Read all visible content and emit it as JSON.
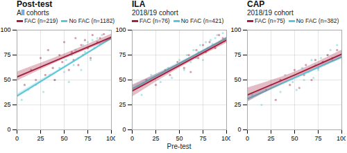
{
  "chart_data": [
    {
      "type": "scatter",
      "title": "Post-test",
      "subtitle": "All cohorts",
      "xlim": [
        0,
        100
      ],
      "ylim": [
        0,
        100
      ],
      "xticks": [
        0,
        25,
        50,
        75,
        100
      ],
      "yticks": [
        0,
        25,
        50,
        75,
        100
      ],
      "grid": true,
      "legend": "top",
      "series": [
        {
          "name": "FAC (n=219)",
          "color": "#a3213f",
          "x": [
            8,
            15,
            20,
            25,
            30,
            33,
            38,
            40,
            45,
            48,
            50,
            55,
            58,
            60,
            62,
            65,
            68,
            70,
            72,
            75,
            78,
            80,
            85,
            88,
            92
          ],
          "values": [
            45,
            60,
            50,
            72,
            55,
            80,
            62,
            50,
            75,
            68,
            88,
            60,
            78,
            70,
            92,
            65,
            85,
            75,
            90,
            82,
            72,
            95,
            88,
            92,
            96
          ],
          "fit_x": [
            0,
            50,
            100
          ],
          "fit": [
            53,
            73,
            93
          ],
          "fit_lower": [
            49,
            71,
            90
          ],
          "fit_upper": [
            58,
            76,
            96
          ]
        },
        {
          "name": "No FAC (n=1182)",
          "color": "#5cc6d8",
          "x": [
            5,
            12,
            20,
            28,
            35,
            40,
            45,
            50,
            52,
            55,
            58,
            60,
            62,
            65,
            68,
            70,
            72,
            75,
            78,
            80,
            82,
            85,
            88,
            90,
            95,
            98
          ],
          "values": [
            30,
            40,
            45,
            38,
            55,
            50,
            62,
            58,
            70,
            48,
            75,
            65,
            80,
            72,
            60,
            85,
            78,
            88,
            70,
            90,
            82,
            92,
            86,
            95,
            90,
            100
          ],
          "fit_x": [
            0,
            50,
            100
          ],
          "fit": [
            34,
            63,
            92
          ],
          "fit_lower": [
            32,
            62,
            91
          ],
          "fit_upper": [
            36,
            64,
            93
          ]
        }
      ]
    },
    {
      "type": "scatter",
      "title": "ILA",
      "subtitle": "2018/19 cohort",
      "x_label": "Pre-test",
      "xlim": [
        0,
        100
      ],
      "ylim": [
        0,
        100
      ],
      "xticks": [
        0,
        25,
        50,
        75,
        100
      ],
      "yticks": [
        0,
        25,
        50,
        75,
        100
      ],
      "grid": true,
      "legend": "top",
      "series": [
        {
          "name": "FAC (n=76)",
          "color": "#a3213f",
          "x": [
            15,
            25,
            35,
            40,
            48,
            55,
            60,
            62,
            68,
            70,
            75,
            78,
            82,
            88,
            92,
            96
          ],
          "values": [
            50,
            45,
            60,
            55,
            68,
            62,
            75,
            58,
            80,
            72,
            85,
            78,
            88,
            82,
            95,
            92
          ],
          "fit_x": [
            0,
            50,
            100
          ],
          "fit": [
            39,
            64.5,
            90
          ],
          "fit_lower": [
            33,
            62,
            87
          ],
          "fit_upper": [
            45,
            67,
            93
          ]
        },
        {
          "name": "No FAC (n=421)",
          "color": "#5cc6d8",
          "x": [
            10,
            20,
            30,
            38,
            42,
            50,
            55,
            58,
            62,
            65,
            68,
            70,
            72,
            75,
            78,
            80,
            83,
            85,
            88,
            90,
            93,
            96,
            100
          ],
          "values": [
            35,
            55,
            48,
            62,
            52,
            70,
            60,
            75,
            68,
            80,
            72,
            78,
            85,
            70,
            88,
            82,
            90,
            86,
            92,
            95,
            88,
            97,
            100
          ],
          "fit_x": [
            0,
            50,
            100
          ],
          "fit": [
            41,
            66.5,
            92
          ],
          "fit_lower": [
            38,
            65,
            91
          ],
          "fit_upper": [
            44,
            68,
            93
          ]
        }
      ]
    },
    {
      "type": "scatter",
      "title": "CAP",
      "subtitle": "2018/19 cohort",
      "xlim": [
        0,
        100
      ],
      "ylim": [
        0,
        100
      ],
      "xticks": [
        0,
        25,
        50,
        75,
        100
      ],
      "yticks": [
        0,
        25,
        50,
        75,
        100
      ],
      "grid": true,
      "legend": "top",
      "series": [
        {
          "name": "FAC (n=75)",
          "color": "#a3213f",
          "x": [
            20,
            30,
            35,
            45,
            50,
            55,
            60,
            62,
            68,
            72,
            75,
            80,
            85,
            90,
            95
          ],
          "values": [
            40,
            30,
            50,
            45,
            60,
            42,
            55,
            65,
            50,
            70,
            62,
            68,
            75,
            72,
            80
          ],
          "fit_x": [
            0,
            50,
            100
          ],
          "fit": [
            35,
            55,
            76
          ],
          "fit_lower": [
            28,
            52,
            72
          ],
          "fit_upper": [
            42,
            58,
            80
          ]
        },
        {
          "name": "No FAC (n=382)",
          "color": "#5cc6d8",
          "x": [
            5,
            15,
            25,
            35,
            40,
            48,
            52,
            58,
            60,
            65,
            68,
            70,
            72,
            75,
            78,
            80,
            85,
            88,
            90,
            95,
            100
          ],
          "values": [
            35,
            25,
            45,
            38,
            55,
            48,
            40,
            62,
            50,
            58,
            70,
            52,
            65,
            60,
            72,
            68,
            75,
            80,
            70,
            85,
            78
          ],
          "fit_x": [
            0,
            50,
            100
          ],
          "fit": [
            31,
            52,
            73
          ],
          "fit_lower": [
            28,
            51,
            71
          ],
          "fit_upper": [
            34,
            53,
            75
          ]
        }
      ]
    }
  ]
}
